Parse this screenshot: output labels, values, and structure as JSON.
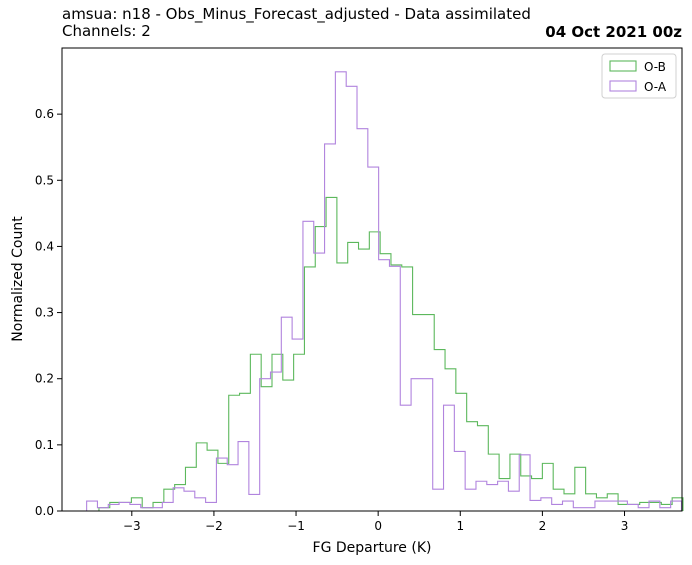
{
  "header": {
    "title_line1": "amsua: n18 - Obs_Minus_Forecast_adjusted - Data assimilated",
    "title_line2": "Channels: 2",
    "date": "04 Oct 2021 00z"
  },
  "chart_data": {
    "type": "step-histogram",
    "xlabel": "FG Departure (K)",
    "ylabel": "Normalized Count",
    "xlim": [
      -3.85,
      3.7
    ],
    "ylim": [
      0,
      0.7
    ],
    "xticks": [
      -3,
      -2,
      -1,
      0,
      1,
      2,
      3
    ],
    "xtick_labels": [
      "−3",
      "−2",
      "−1",
      "0",
      "1",
      "2",
      "3"
    ],
    "yticks": [
      0.0,
      0.1,
      0.2,
      0.3,
      0.4,
      0.5,
      0.6
    ],
    "ytick_labels": [
      "0.0",
      "0.1",
      "0.2",
      "0.3",
      "0.4",
      "0.5",
      "0.6"
    ],
    "legend_position": "top-right",
    "series": [
      {
        "name": "O-B",
        "color": "#5cb85c",
        "x_start": -3.4,
        "bin_width": 0.1317,
        "values": [
          0.005,
          0.013,
          0.013,
          0.02,
          0.005,
          0.013,
          0.033,
          0.04,
          0.066,
          0.103,
          0.092,
          0.072,
          0.175,
          0.178,
          0.237,
          0.188,
          0.237,
          0.198,
          0.237,
          0.369,
          0.43,
          0.474,
          0.375,
          0.406,
          0.396,
          0.422,
          0.389,
          0.372,
          0.369,
          0.297,
          0.297,
          0.244,
          0.215,
          0.178,
          0.135,
          0.129,
          0.086,
          0.049,
          0.086,
          0.053,
          0.049,
          0.072,
          0.033,
          0.026,
          0.066,
          0.026,
          0.02,
          0.026,
          0.01,
          0.01,
          0.013,
          0.013,
          0.01,
          0.02
        ]
      },
      {
        "name": "O-A",
        "color": "#b184de",
        "x_start": -3.55,
        "bin_width": 0.1317,
        "values": [
          0.015,
          0.005,
          0.01,
          0.013,
          0.01,
          0.005,
          0.005,
          0.013,
          0.035,
          0.03,
          0.02,
          0.013,
          0.08,
          0.07,
          0.105,
          0.025,
          0.2,
          0.21,
          0.293,
          0.26,
          0.438,
          0.39,
          0.555,
          0.664,
          0.642,
          0.578,
          0.52,
          0.38,
          0.37,
          0.16,
          0.2,
          0.2,
          0.033,
          0.16,
          0.09,
          0.033,
          0.045,
          0.04,
          0.045,
          0.03,
          0.085,
          0.016,
          0.02,
          0.01,
          0.015,
          0.005,
          0.005,
          0.015,
          0.015,
          0.015,
          0.01,
          0.005,
          0.015,
          0.005,
          0.015
        ]
      }
    ]
  }
}
